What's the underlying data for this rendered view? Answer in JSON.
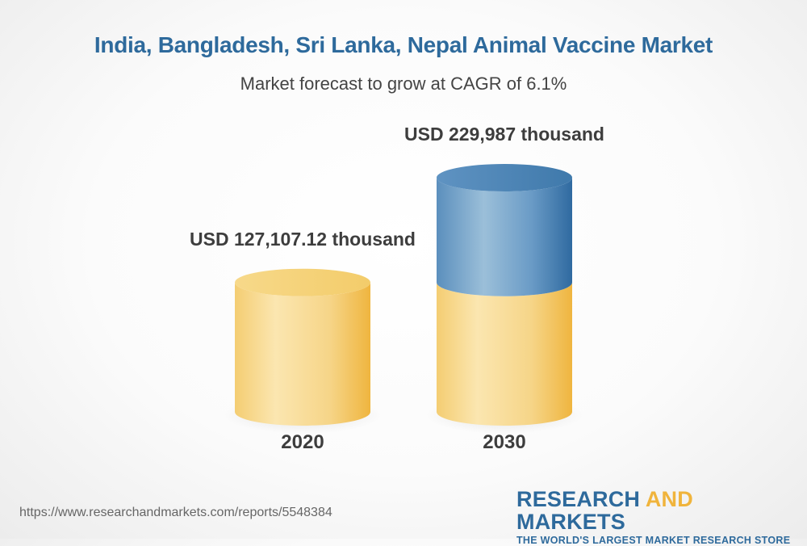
{
  "title": "India, Bangladesh, Sri Lanka, Nepal Animal Vaccine Market",
  "subtitle": "Market forecast to grow at CAGR of 6.1%",
  "chart_data": {
    "type": "bar",
    "style": "3d-cylinder",
    "categories": [
      "2020",
      "2030"
    ],
    "values": [
      127107.12,
      229987
    ],
    "value_labels": [
      "USD 127,107.12 thousand",
      "USD 229,987 thousand"
    ],
    "unit": "USD thousand",
    "colors": {
      "base": "#f2c35a",
      "base_light": "#fbe6b0",
      "growth": "#3f79ab",
      "growth_light": "#9bbfd9"
    }
  },
  "footer": {
    "url": "https://www.researchandmarkets.com/reports/5548384",
    "logo_word1": "RESEARCH ",
    "logo_word2": "AND",
    "logo_word3": " MARKETS",
    "logo_tagline": "THE WORLD'S LARGEST MARKET RESEARCH STORE"
  }
}
